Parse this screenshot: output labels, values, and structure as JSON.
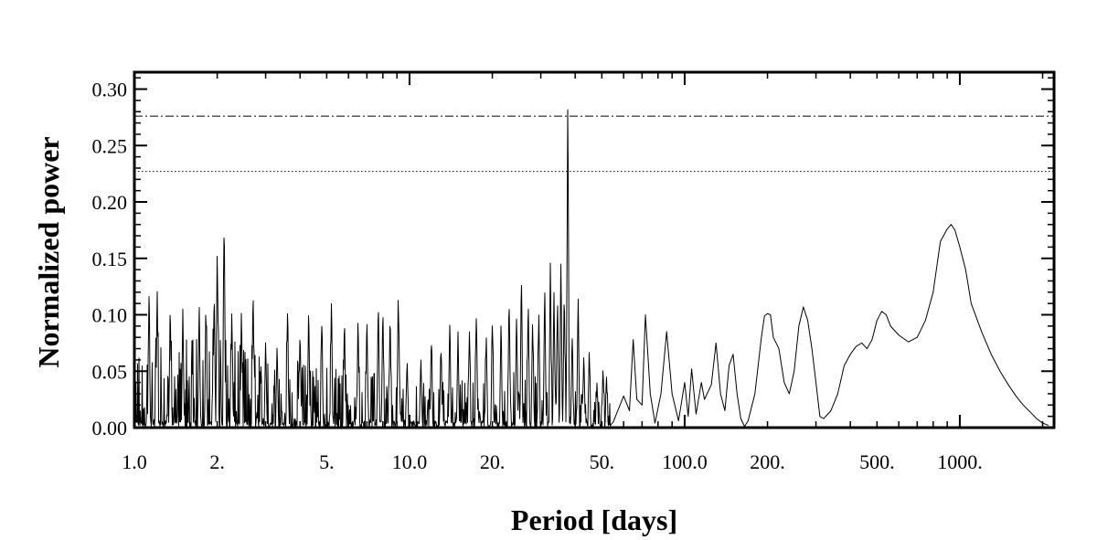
{
  "chart_data": {
    "type": "line",
    "title": "",
    "xlabel": "Period [days]",
    "ylabel": "Normalized power",
    "x_scale": "log",
    "xlim": [
      1.0,
      2200
    ],
    "ylim": [
      0.0,
      0.315
    ],
    "grid": false,
    "legend": "none",
    "x_tick_labels": [
      {
        "value": 1.0,
        "label": "1.0"
      },
      {
        "value": 2.0,
        "label": "2."
      },
      {
        "value": 5.0,
        "label": "5."
      },
      {
        "value": 10.0,
        "label": "10.0"
      },
      {
        "value": 20.0,
        "label": "20."
      },
      {
        "value": 50.0,
        "label": "50."
      },
      {
        "value": 100.0,
        "label": "100.0"
      },
      {
        "value": 200.0,
        "label": "200."
      },
      {
        "value": 500.0,
        "label": "500."
      },
      {
        "value": 1000.0,
        "label": "1000."
      }
    ],
    "y_tick_labels": [
      {
        "value": 0.0,
        "label": "0.00"
      },
      {
        "value": 0.05,
        "label": "0.05"
      },
      {
        "value": 0.1,
        "label": "0.10"
      },
      {
        "value": 0.15,
        "label": "0.15"
      },
      {
        "value": 0.2,
        "label": "0.20"
      },
      {
        "value": 0.25,
        "label": "0.25"
      },
      {
        "value": 0.3,
        "label": "0.30"
      }
    ],
    "threshold_lines": [
      {
        "y": 0.276,
        "style": "dash-dot"
      },
      {
        "y": 0.227,
        "style": "dotted"
      }
    ],
    "series": [
      {
        "color": "#000000",
        "long_period": [
          [
            55,
            0.005
          ],
          [
            60,
            0.028
          ],
          [
            63,
            0.015
          ],
          [
            65,
            0.078
          ],
          [
            67,
            0.025
          ],
          [
            70,
            0.02
          ],
          [
            72,
            0.1
          ],
          [
            75,
            0.03
          ],
          [
            78,
            0.004
          ],
          [
            82,
            0.03
          ],
          [
            86,
            0.085
          ],
          [
            90,
            0.03
          ],
          [
            95,
            0.006
          ],
          [
            100,
            0.04
          ],
          [
            103,
            0.01
          ],
          [
            106,
            0.052
          ],
          [
            110,
            0.012
          ],
          [
            115,
            0.04
          ],
          [
            118,
            0.025
          ],
          [
            125,
            0.038
          ],
          [
            130,
            0.075
          ],
          [
            135,
            0.03
          ],
          [
            140,
            0.015
          ],
          [
            145,
            0.055
          ],
          [
            150,
            0.065
          ],
          [
            155,
            0.03
          ],
          [
            160,
            0.008
          ],
          [
            165,
            0.001
          ],
          [
            170,
            0.006
          ],
          [
            180,
            0.03
          ],
          [
            190,
            0.08
          ],
          [
            195,
            0.099
          ],
          [
            200,
            0.101
          ],
          [
            205,
            0.1
          ],
          [
            210,
            0.08
          ],
          [
            220,
            0.07
          ],
          [
            230,
            0.04
          ],
          [
            240,
            0.03
          ],
          [
            250,
            0.05
          ],
          [
            260,
            0.09
          ],
          [
            270,
            0.107
          ],
          [
            280,
            0.095
          ],
          [
            290,
            0.07
          ],
          [
            300,
            0.04
          ],
          [
            310,
            0.01
          ],
          [
            320,
            0.008
          ],
          [
            340,
            0.015
          ],
          [
            360,
            0.03
          ],
          [
            380,
            0.055
          ],
          [
            400,
            0.065
          ],
          [
            420,
            0.072
          ],
          [
            440,
            0.075
          ],
          [
            460,
            0.07
          ],
          [
            480,
            0.078
          ],
          [
            500,
            0.095
          ],
          [
            520,
            0.103
          ],
          [
            540,
            0.1
          ],
          [
            560,
            0.09
          ],
          [
            600,
            0.082
          ],
          [
            650,
            0.076
          ],
          [
            700,
            0.08
          ],
          [
            750,
            0.095
          ],
          [
            800,
            0.12
          ],
          [
            850,
            0.165
          ],
          [
            900,
            0.176
          ],
          [
            930,
            0.18
          ],
          [
            960,
            0.175
          ],
          [
            1000,
            0.16
          ],
          [
            1050,
            0.14
          ],
          [
            1100,
            0.11
          ],
          [
            1200,
            0.085
          ],
          [
            1300,
            0.065
          ],
          [
            1400,
            0.05
          ],
          [
            1500,
            0.038
          ],
          [
            1600,
            0.028
          ],
          [
            1700,
            0.02
          ],
          [
            1800,
            0.014
          ],
          [
            1900,
            0.008
          ],
          [
            2000,
            0.004
          ],
          [
            2100,
            0.002
          ]
        ],
        "peaks": [
          [
            1.13,
            0.118
          ],
          [
            1.21,
            0.125
          ],
          [
            1.35,
            0.11
          ],
          [
            1.5,
            0.105
          ],
          [
            1.72,
            0.112
          ],
          [
            1.82,
            0.105
          ],
          [
            1.95,
            0.125
          ],
          [
            2.0,
            0.162
          ],
          [
            2.12,
            0.195
          ],
          [
            2.26,
            0.106
          ],
          [
            2.45,
            0.104
          ],
          [
            2.7,
            0.125
          ],
          [
            3.0,
            0.078
          ],
          [
            3.3,
            0.073
          ],
          [
            3.6,
            0.105
          ],
          [
            4.0,
            0.088
          ],
          [
            4.3,
            0.108
          ],
          [
            4.8,
            0.092
          ],
          [
            5.2,
            0.11
          ],
          [
            5.8,
            0.1
          ],
          [
            6.5,
            0.098
          ],
          [
            7.0,
            0.1
          ],
          [
            7.7,
            0.115
          ],
          [
            8.0,
            0.11
          ],
          [
            8.5,
            0.098
          ],
          [
            9.1,
            0.122
          ],
          [
            9.8,
            0.062
          ],
          [
            11.0,
            0.062
          ],
          [
            12.0,
            0.082
          ],
          [
            13.0,
            0.075
          ],
          [
            14.0,
            0.093
          ],
          [
            15.0,
            0.086
          ],
          [
            16.5,
            0.088
          ],
          [
            17.5,
            0.105
          ],
          [
            19.0,
            0.085
          ],
          [
            20.0,
            0.095
          ],
          [
            21.5,
            0.092
          ],
          [
            23.0,
            0.115
          ],
          [
            24.5,
            0.1
          ],
          [
            25.5,
            0.135
          ],
          [
            27.0,
            0.115
          ],
          [
            28.0,
            0.095
          ],
          [
            29.5,
            0.105
          ],
          [
            31.0,
            0.13
          ],
          [
            32.5,
            0.15
          ],
          [
            33.5,
            0.12
          ],
          [
            34.5,
            0.118
          ],
          [
            35.5,
            0.153
          ],
          [
            36.5,
            0.125
          ],
          [
            37.6,
            0.3
          ],
          [
            39.0,
            0.085
          ],
          [
            41.0,
            0.12
          ],
          [
            43.0,
            0.065
          ],
          [
            45.0,
            0.07
          ],
          [
            48.0,
            0.04
          ],
          [
            50.5,
            0.055
          ],
          [
            52.0,
            0.045
          ]
        ],
        "noise_floor": [
          [
            1.0,
            0.05
          ],
          [
            2.0,
            0.06
          ],
          [
            3.0,
            0.045
          ],
          [
            5.0,
            0.04
          ],
          [
            8.0,
            0.035
          ],
          [
            10.0,
            0.035
          ],
          [
            15.0,
            0.03
          ],
          [
            20.0,
            0.035
          ],
          [
            30.0,
            0.035
          ],
          [
            40.0,
            0.03
          ],
          [
            55.0,
            0.015
          ]
        ]
      }
    ]
  }
}
